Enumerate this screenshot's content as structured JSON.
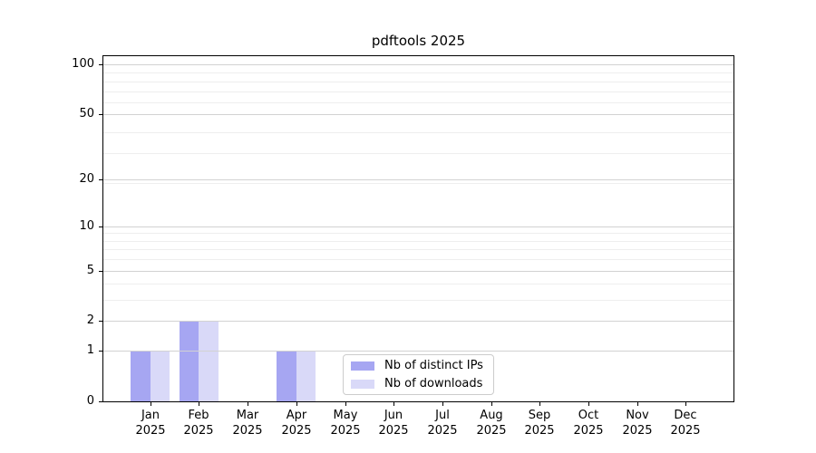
{
  "chart_data": {
    "type": "bar",
    "title": "pdftools 2025",
    "categories": [
      "Jan",
      "Feb",
      "Mar",
      "Apr",
      "May",
      "Jun",
      "Jul",
      "Aug",
      "Sep",
      "Oct",
      "Nov",
      "Dec"
    ],
    "category_sublabel": "2025",
    "series": [
      {
        "name": "Nb of distinct IPs",
        "color": "#a6a6f2",
        "values": [
          1,
          2,
          0,
          1,
          0,
          0,
          0,
          0,
          0,
          0,
          0,
          0
        ]
      },
      {
        "name": "Nb of downloads",
        "color": "#d9d9f8",
        "values": [
          1,
          2,
          0,
          1,
          0,
          0,
          0,
          0,
          0,
          0,
          0,
          0
        ]
      }
    ],
    "yscale": "log1p",
    "ylim": [
      0,
      112
    ],
    "y_ticks": [
      0,
      1,
      2,
      5,
      10,
      20,
      50,
      100
    ],
    "y_minor_ticks": [
      3,
      4,
      6,
      7,
      8,
      9,
      19,
      29,
      39,
      59,
      69,
      79,
      89
    ],
    "grid": true,
    "legend_position": "lower center-left inside plot",
    "colors": {
      "grid_major": "#d2d2d2",
      "grid_minor": "#eeeeee",
      "spine": "#000000",
      "text": "#000000",
      "background": "#ffffff"
    }
  }
}
